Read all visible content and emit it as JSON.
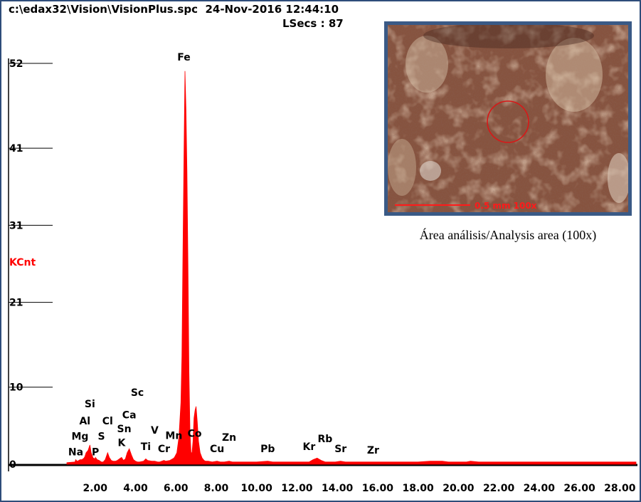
{
  "header": {
    "file_path": "c:\\edax32\\Vision\\VisionPlus.spc",
    "datetime": "24-Nov-2016 12:44:10",
    "lsecs_label": "LSecs :",
    "lsecs_value": "87"
  },
  "inset": {
    "scale_label": "0.5 mm  100x",
    "caption": "Área análisis/Analysis area (100x)"
  },
  "colors": {
    "spectrum": "#ff0000",
    "frame": "#2e4d7a",
    "ylabel": "#ff0000"
  },
  "chart_data": {
    "type": "area",
    "title": "",
    "xlabel": "",
    "ylabel": "KCnt",
    "xlim": [
      0.0,
      28.8
    ],
    "ylim": [
      0,
      52
    ],
    "x_ticks": [
      "2.00",
      "4.00",
      "6.00",
      "8.00",
      "10.00",
      "12.00",
      "14.00",
      "16.00",
      "18.00",
      "20.00",
      "22.00",
      "24.00",
      "26.00",
      "28.00"
    ],
    "y_ticks": [
      "0",
      "10",
      "21",
      "31",
      "41",
      "52"
    ],
    "series": [
      {
        "x": [
          0.6,
          1.0,
          1.04,
          1.1,
          1.2,
          1.25,
          1.35,
          1.45,
          1.49,
          1.55,
          1.65,
          1.74,
          1.8,
          1.9,
          2.0,
          2.013,
          2.1,
          2.2,
          2.31,
          2.4,
          2.5,
          2.62,
          2.7,
          2.8,
          2.9,
          3.0,
          3.1,
          3.2,
          3.31,
          3.4,
          3.5,
          3.59,
          3.69,
          3.8,
          3.9,
          4.0,
          4.1,
          4.2,
          4.4,
          4.51,
          4.6,
          4.8,
          4.95,
          5.1,
          5.2,
          5.41,
          5.5,
          5.7,
          5.9,
          5.95,
          6.05,
          6.15,
          6.25,
          6.3,
          6.35,
          6.4,
          6.45,
          6.5,
          6.55,
          6.6,
          6.65,
          6.7,
          6.75,
          6.8,
          6.85,
          6.9,
          6.95,
          7.0,
          7.06,
          7.12,
          7.2,
          7.3,
          7.4,
          7.47,
          7.6,
          7.8,
          8.04,
          8.2,
          8.4,
          8.64,
          8.8,
          10.0,
          10.55,
          10.8,
          12.0,
          12.6,
          12.8,
          13.0,
          13.2,
          13.4,
          13.9,
          14.16,
          14.4,
          15.0,
          15.77,
          16.0,
          18.0,
          18.6,
          18.9,
          19.2,
          19.5,
          20.2,
          20.4,
          20.6,
          21.0,
          22.0,
          22.6,
          23.0,
          23.2,
          24.0,
          25.0,
          26.0,
          27.0,
          28.0,
          28.8
        ],
        "y": [
          0.2,
          0.3,
          0.6,
          0.4,
          0.5,
          0.6,
          0.6,
          0.8,
          1.0,
          1.5,
          1.8,
          2.5,
          1.5,
          0.8,
          0.7,
          0.9,
          0.6,
          0.5,
          0.3,
          0.3,
          0.6,
          1.5,
          0.9,
          0.5,
          0.4,
          0.4,
          0.5,
          0.7,
          0.9,
          0.5,
          0.7,
          1.5,
          2.0,
          1.2,
          0.6,
          0.4,
          0.3,
          0.3,
          0.4,
          0.7,
          0.5,
          0.4,
          0.4,
          0.3,
          0.3,
          0.5,
          0.4,
          0.5,
          0.8,
          1.0,
          1.5,
          3.5,
          8.0,
          14.0,
          27.0,
          40.0,
          51.0,
          46.0,
          38.0,
          26.0,
          12.0,
          4.0,
          1.5,
          1.5,
          3.0,
          6.0,
          7.0,
          7.5,
          5.5,
          3.0,
          1.5,
          0.8,
          0.5,
          0.4,
          0.4,
          0.3,
          0.4,
          0.3,
          0.3,
          0.4,
          0.3,
          0.3,
          0.4,
          0.3,
          0.3,
          0.3,
          0.6,
          0.8,
          0.5,
          0.3,
          0.3,
          0.4,
          0.3,
          0.3,
          0.3,
          0.3,
          0.3,
          0.4,
          0.4,
          0.4,
          0.3,
          0.3,
          0.3,
          0.4,
          0.3,
          0.3,
          0.3,
          0.3,
          0.3,
          0.3,
          0.3,
          0.3,
          0.3,
          0.3,
          0.3
        ],
        "color": "#ff0000"
      }
    ],
    "annotations": [
      {
        "text": "Fe",
        "x": 6.4,
        "y": 52.0
      },
      {
        "text": "Sc",
        "x": 4.09,
        "y": 8.5
      },
      {
        "text": "Si",
        "x": 1.74,
        "y": 7.0
      },
      {
        "text": "Ca",
        "x": 3.69,
        "y": 5.6
      },
      {
        "text": "Cl",
        "x": 2.62,
        "y": 4.8
      },
      {
        "text": "Al",
        "x": 1.49,
        "y": 4.8
      },
      {
        "text": "Sn",
        "x": 3.44,
        "y": 3.8
      },
      {
        "text": "V",
        "x": 4.95,
        "y": 3.6
      },
      {
        "text": "Co",
        "x": 6.93,
        "y": 3.2
      },
      {
        "text": "Mg",
        "x": 1.25,
        "y": 2.8
      },
      {
        "text": "S",
        "x": 2.31,
        "y": 2.8
      },
      {
        "text": "Mn",
        "x": 5.9,
        "y": 2.9
      },
      {
        "text": "Zn",
        "x": 8.64,
        "y": 2.7
      },
      {
        "text": "Rb",
        "x": 13.39,
        "y": 2.5
      },
      {
        "text": "K",
        "x": 3.31,
        "y": 2.0
      },
      {
        "text": "Ti",
        "x": 4.51,
        "y": 1.5
      },
      {
        "text": "Cr",
        "x": 5.41,
        "y": 1.2
      },
      {
        "text": "Cu",
        "x": 8.04,
        "y": 1.2
      },
      {
        "text": "Pb",
        "x": 10.55,
        "y": 1.2
      },
      {
        "text": "Kr",
        "x": 12.6,
        "y": 1.5
      },
      {
        "text": "Sr",
        "x": 14.16,
        "y": 1.2
      },
      {
        "text": "Zr",
        "x": 15.77,
        "y": 1.0
      },
      {
        "text": "Na",
        "x": 1.04,
        "y": 0.8
      },
      {
        "text": "P",
        "x": 2.013,
        "y": 0.8
      }
    ],
    "grid": false,
    "legend": "none"
  }
}
